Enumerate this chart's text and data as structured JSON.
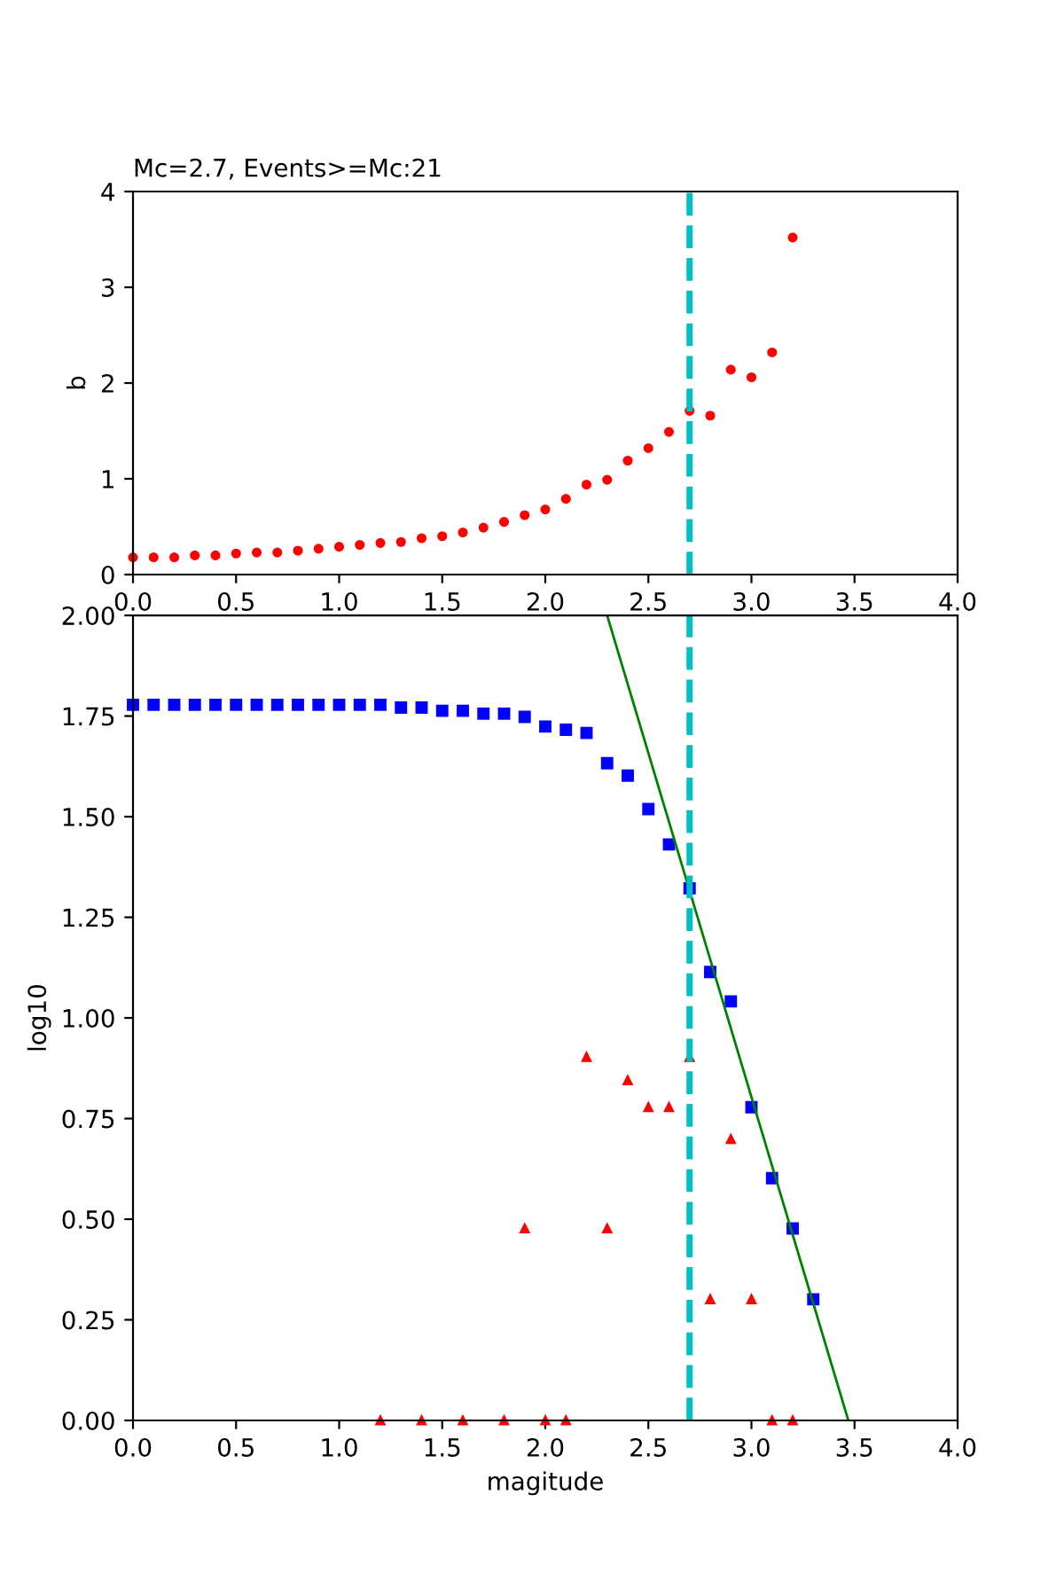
{
  "chart_data": [
    {
      "type": "scatter",
      "title": "Mc=2.7, Events>=Mc:21",
      "ylabel": "b",
      "marker": "circle",
      "series": [
        {
          "color": "#ff0000",
          "x": [
            0.0,
            0.1,
            0.2,
            0.3,
            0.4,
            0.5,
            0.6,
            0.7,
            0.8,
            0.9,
            1.0,
            1.1,
            1.2,
            1.3,
            1.4,
            1.5,
            1.6,
            1.7,
            1.8,
            1.9,
            2.0,
            2.1,
            2.2,
            2.3,
            2.4,
            2.5,
            2.6,
            2.7,
            2.8,
            2.9,
            3.0,
            3.1,
            3.2
          ],
          "values": [
            0.18,
            0.18,
            0.18,
            0.2,
            0.2,
            0.22,
            0.23,
            0.23,
            0.25,
            0.27,
            0.29,
            0.31,
            0.33,
            0.34,
            0.38,
            0.4,
            0.44,
            0.49,
            0.55,
            0.62,
            0.68,
            0.79,
            0.94,
            0.99,
            1.19,
            1.32,
            1.49,
            1.71,
            1.66,
            2.14,
            2.06,
            2.32,
            3.52
          ]
        }
      ],
      "xlim": [
        0.0,
        4.0
      ],
      "xticks": [
        {
          "value": 0,
          "label": "0.0"
        },
        0.5,
        {
          "value": 1,
          "label": "1.0"
        },
        1.5,
        {
          "value": 2,
          "label": "2.0"
        },
        2.5,
        {
          "value": 3,
          "label": "3.0"
        },
        3.5,
        {
          "value": 4,
          "label": "4.0"
        }
      ],
      "ylim": [
        0,
        4
      ],
      "yticks": [
        0,
        1,
        2,
        3,
        4
      ],
      "ref_lines": [
        {
          "axis": "x",
          "value": 2.7,
          "color": "#00bfbf",
          "line_style": "dashed"
        }
      ],
      "grid": false,
      "legend": false
    },
    {
      "type": "scatter",
      "xlabel": "magitude",
      "ylabel": "log10",
      "series": [
        {
          "color": "#0000ff",
          "marker": "square",
          "x": [
            0.0,
            0.1,
            0.2,
            0.3,
            0.4,
            0.5,
            0.6,
            0.7,
            0.8,
            0.9,
            1.0,
            1.1,
            1.2,
            1.3,
            1.4,
            1.5,
            1.6,
            1.7,
            1.8,
            1.9,
            2.0,
            2.1,
            2.2,
            2.3,
            2.4,
            2.5,
            2.6,
            2.7,
            2.8,
            2.9,
            3.0,
            3.1,
            3.2,
            3.3
          ],
          "values": [
            1.778,
            1.778,
            1.778,
            1.778,
            1.778,
            1.778,
            1.778,
            1.778,
            1.778,
            1.778,
            1.778,
            1.778,
            1.778,
            1.771,
            1.771,
            1.763,
            1.763,
            1.756,
            1.756,
            1.748,
            1.724,
            1.716,
            1.708,
            1.633,
            1.602,
            1.519,
            1.431,
            1.322,
            1.114,
            1.041,
            0.778,
            0.602,
            0.477,
            0.301
          ]
        },
        {
          "color": "#ff0000",
          "marker": "triangle",
          "x": [
            1.2,
            1.4,
            1.6,
            1.8,
            1.9,
            2.0,
            2.1,
            2.2,
            2.3,
            2.4,
            2.5,
            2.6,
            2.7,
            2.8,
            2.9,
            3.0,
            3.1,
            3.2
          ],
          "values": [
            0.0,
            0.0,
            0.0,
            0.0,
            0.477,
            0.0,
            0.0,
            0.903,
            0.477,
            0.845,
            0.778,
            0.778,
            0.903,
            0.301,
            0.699,
            0.301,
            0.0,
            0.0
          ]
        },
        {
          "type": "line",
          "color": "#008000",
          "marker": "none",
          "line_style": "solid",
          "x": [
            2.3,
            3.47
          ],
          "values": [
            2.0,
            0.0
          ]
        }
      ],
      "xlim": [
        0.0,
        4.0
      ],
      "xticks": [
        {
          "value": 0,
          "label": "0.0"
        },
        0.5,
        {
          "value": 1,
          "label": "1.0"
        },
        1.5,
        {
          "value": 2,
          "label": "2.0"
        },
        2.5,
        {
          "value": 3,
          "label": "3.0"
        },
        3.5,
        {
          "value": 4,
          "label": "4.0"
        }
      ],
      "ylim": [
        0.0,
        2.0
      ],
      "yticks": [
        {
          "value": 0,
          "label": "0.00"
        },
        {
          "value": 0.25,
          "label": "0.25"
        },
        {
          "value": 0.5,
          "label": "0.50"
        },
        {
          "value": 0.75,
          "label": "0.75"
        },
        {
          "value": 1.0,
          "label": "1.00"
        },
        {
          "value": 1.25,
          "label": "1.25"
        },
        {
          "value": 1.5,
          "label": "1.50"
        },
        {
          "value": 1.75,
          "label": "1.75"
        },
        {
          "value": 2.0,
          "label": "2.00"
        }
      ],
      "ref_lines": [
        {
          "axis": "x",
          "value": 2.7,
          "color": "#00bfbf",
          "line_style": "dashed"
        }
      ],
      "grid": false,
      "legend": false
    }
  ]
}
